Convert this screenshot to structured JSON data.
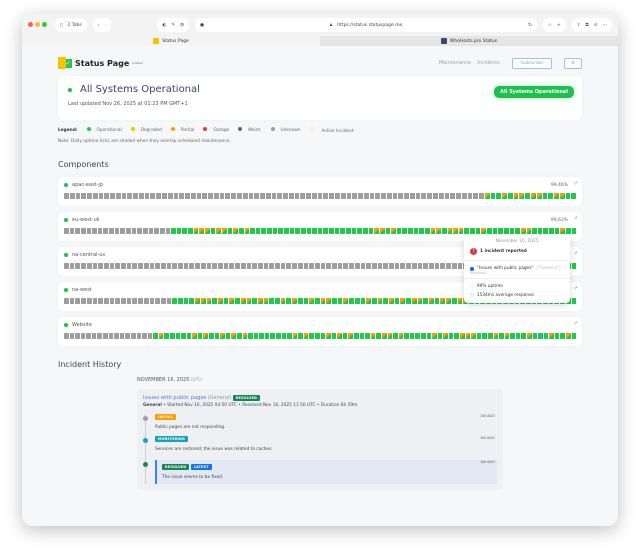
{
  "browser": {
    "tabs_count": "2 Tabs",
    "url": "https://status.statuspage.me",
    "tabs": [
      {
        "label": "Status Page",
        "active": true
      },
      {
        "label": "WhoHosts.pro Status",
        "active": false
      }
    ]
  },
  "header": {
    "logo_text": "Status Page",
    "logo_sup": "hosted",
    "nav": [
      "Maintenance",
      "Incidents"
    ],
    "subscribe": "Subscribe",
    "settings_icon": "gear-icon"
  },
  "hero": {
    "title": "All Systems Operational",
    "updated": "Last updated Nov 26, 2025 at 01:23 PM GMT+1",
    "badge": "All Systems Operational"
  },
  "legend": {
    "label": "Legend:",
    "items": [
      {
        "label": "Operational",
        "color": "#1ec94c"
      },
      {
        "label": "Degraded",
        "color": "#f5c400"
      },
      {
        "label": "Partial",
        "color": "#ff9d00"
      },
      {
        "label": "Outage",
        "color": "#e53935"
      },
      {
        "label": "Maint.",
        "color": "#546e7a"
      },
      {
        "label": "Unknown",
        "color": "#9e9e9e"
      },
      {
        "label": "Active Incident",
        "color": "#fbeede"
      }
    ],
    "note": "Note: Daily uptime ticks are shaded when they overlap scheduled maintenance."
  },
  "components_title": "Components",
  "components": [
    {
      "name": "apac-east-jp",
      "uptime": "99.46%",
      "ticks": "uuuuuuuuuuuuuuuuuuuuuuuuuuuuuuuuuuuuuuuuuuuuuuuuuuuuuuuuuuuuuuuuuuuuuuuuupoopoppoppooppoo"
    },
    {
      "name": "eu-west-uk",
      "uptime": "99.63%",
      "ticks": "uuuuuuuuuuuuuuuuuuuoooopppoppopopooooooooooooooooooooooppopooooooppopppooopooooooppooooopoo"
    },
    {
      "name": "na-central-us",
      "uptime": "",
      "ticks": "uuuuuuuuuuuuuuuuuuuuuuuuuuuuuuuuuuuuuuuuuuuuuuuuuuuuuuuuuuuuuuuuuuuuuuuuuuuuuuuuuuuuuuuuoo"
    },
    {
      "name": "na-west",
      "uptime": "",
      "ticks": "uuuuuuuuuuuuuuuuuuuoooopppopopoppoppoopopoopoppoopooopopopopoppopoppoppopopoopoooppoooopoo"
    },
    {
      "name": "Website",
      "uptime": "",
      "ticks": "uuuuuuuuuuuuuuuuopooooopopoopopopoooooooopopooopopopooopoppopooooopopoopppooopopooopooopoopo"
    }
  ],
  "tooltip": {
    "date": "November 16, 2025",
    "count": "1 incident reported",
    "incident": "\"Issues with public pages\"",
    "incident_group": "(\"General\")",
    "incident_status": "Resolved",
    "uptime": "99% uptime",
    "response": "1534ms average response"
  },
  "history": {
    "title": "Incident History",
    "date": "NOVEMBER 16, 2025",
    "tz": "(UTC)",
    "incident": {
      "title": "Issues with public pages",
      "group": "(General)",
      "status": "RESOLVED",
      "meta_bold": "General",
      "meta": " • Started Nov 16, 2025 04:50 UTC • Resolved Nov 16, 2025 11:50 UTC • Duration 6h 59m",
      "updates": [
        {
          "tag": "INITIAL",
          "color": "#ff9d00",
          "dot": "#9e9e9e",
          "text": "Public pages are not responding.",
          "ago": "1W AGO"
        },
        {
          "tag": "MONITORING",
          "color": "#17a2b8",
          "dot": "#17a2b8",
          "text": "Services are restored; the issue was related to caches.",
          "ago": "1W AGO"
        },
        {
          "tag": "RESOLVED",
          "tag2": "LATEST",
          "color": "#198754",
          "dot": "#198754",
          "text": "The issue seems to be fixed.",
          "ago": "1W AGO"
        }
      ]
    }
  }
}
